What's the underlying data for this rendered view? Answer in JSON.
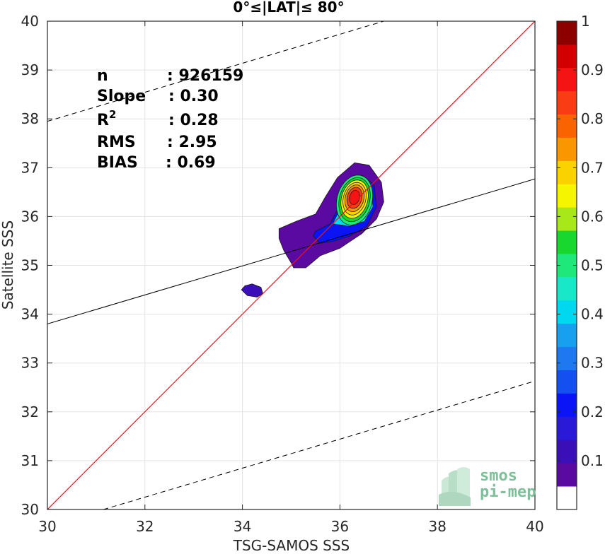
{
  "chart_data": {
    "type": "scatter",
    "title": "0°≤|LAT|≤ 80°",
    "xlabel": "TSG-SAMOS SSS",
    "ylabel": "Satellite SSS",
    "xlim": [
      30,
      40
    ],
    "ylim": [
      30,
      40
    ],
    "xticks": [
      30,
      32,
      34,
      36,
      38,
      40
    ],
    "yticks": [
      30,
      31,
      32,
      33,
      34,
      35,
      36,
      37,
      38,
      39,
      40
    ],
    "grid": true,
    "stats": [
      {
        "label": "n",
        "value": ": 926159"
      },
      {
        "label": "Slope",
        "value": ": 0.30"
      },
      {
        "label": "R",
        "sup": "2",
        "value": ": 0.28"
      },
      {
        "label": "RMS",
        "value": ": 2.95"
      },
      {
        "label": "BIAS",
        "value": ": 0.69"
      }
    ],
    "lines": {
      "one_to_one": {
        "x": [
          30,
          40
        ],
        "y": [
          30,
          40
        ],
        "color": "#e8141c"
      },
      "regression": {
        "x": [
          30,
          40
        ],
        "y": [
          33.8,
          36.77
        ],
        "color": "#000000"
      },
      "upper_bound": {
        "x": [
          30,
          36.9
        ],
        "y": [
          37.95,
          40
        ],
        "style": "dashed"
      },
      "lower_bound": {
        "x": [
          31.15,
          40
        ],
        "y": [
          30,
          32.63
        ],
        "style": "dashed"
      }
    },
    "density_peak": {
      "x": 36.3,
      "y": 36.4
    },
    "contour_levels": [
      0.05,
      0.15,
      0.25,
      0.35,
      0.45,
      0.55,
      0.65,
      0.75,
      0.85,
      0.95
    ],
    "colorbar": {
      "ticks": [
        "0.1",
        "0.2",
        "0.3",
        "0.4",
        "0.5",
        "0.6",
        "0.7",
        "0.8",
        "0.9",
        "1"
      ],
      "colors": [
        "#ffffff",
        "#5a0aa0",
        "#3b0fb8",
        "#2a1ad8",
        "#0a14f5",
        "#1450f0",
        "#1e78f0",
        "#18a0f0",
        "#00d8f0",
        "#18e8c8",
        "#1ee87a",
        "#18d830",
        "#a8e818",
        "#f5f500",
        "#fad200",
        "#fa9600",
        "#fa6400",
        "#fa3c14",
        "#f51414",
        "#d20000",
        "#8c0000"
      ]
    }
  },
  "logo": {
    "line1": "smos",
    "line2": "pi-mep"
  }
}
